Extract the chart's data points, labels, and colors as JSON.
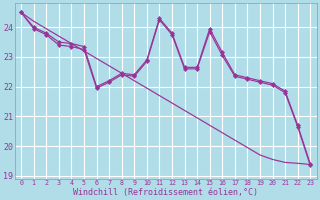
{
  "bg_color": "#b0dde8",
  "grid_color": "#c8eef5",
  "line_color": "#993399",
  "xlabel": "Windchill (Refroidissement éolien,°C)",
  "x_hours": [
    0,
    1,
    2,
    3,
    4,
    5,
    6,
    7,
    8,
    9,
    10,
    11,
    12,
    13,
    14,
    15,
    16,
    17,
    18,
    19,
    20,
    21,
    22,
    23
  ],
  "jagged1": [
    24.5,
    24.0,
    23.8,
    23.5,
    23.45,
    23.35,
    22.0,
    22.2,
    22.45,
    22.4,
    22.9,
    24.3,
    23.8,
    22.65,
    22.65,
    23.95,
    23.15,
    22.4,
    22.3,
    22.2,
    22.1,
    21.85,
    20.7,
    19.4
  ],
  "jagged2": [
    24.5,
    23.95,
    23.75,
    23.4,
    23.35,
    23.25,
    21.95,
    22.15,
    22.4,
    22.35,
    22.85,
    24.25,
    23.75,
    22.6,
    22.6,
    23.85,
    23.05,
    22.35,
    22.25,
    22.15,
    22.05,
    21.8,
    20.65,
    19.35
  ],
  "trend": [
    24.5,
    24.2,
    23.95,
    23.7,
    23.45,
    23.2,
    22.95,
    22.7,
    22.45,
    22.2,
    21.95,
    21.7,
    21.45,
    21.2,
    20.95,
    20.7,
    20.45,
    20.2,
    19.95,
    19.7,
    19.55,
    19.45,
    19.42,
    19.38
  ],
  "ylim": [
    18.9,
    24.8
  ],
  "yticks": [
    19,
    20,
    21,
    22,
    23,
    24
  ],
  "xticks": [
    0,
    1,
    2,
    3,
    4,
    5,
    6,
    7,
    8,
    9,
    10,
    11,
    12,
    13,
    14,
    15,
    16,
    17,
    18,
    19,
    20,
    21,
    22,
    23
  ]
}
